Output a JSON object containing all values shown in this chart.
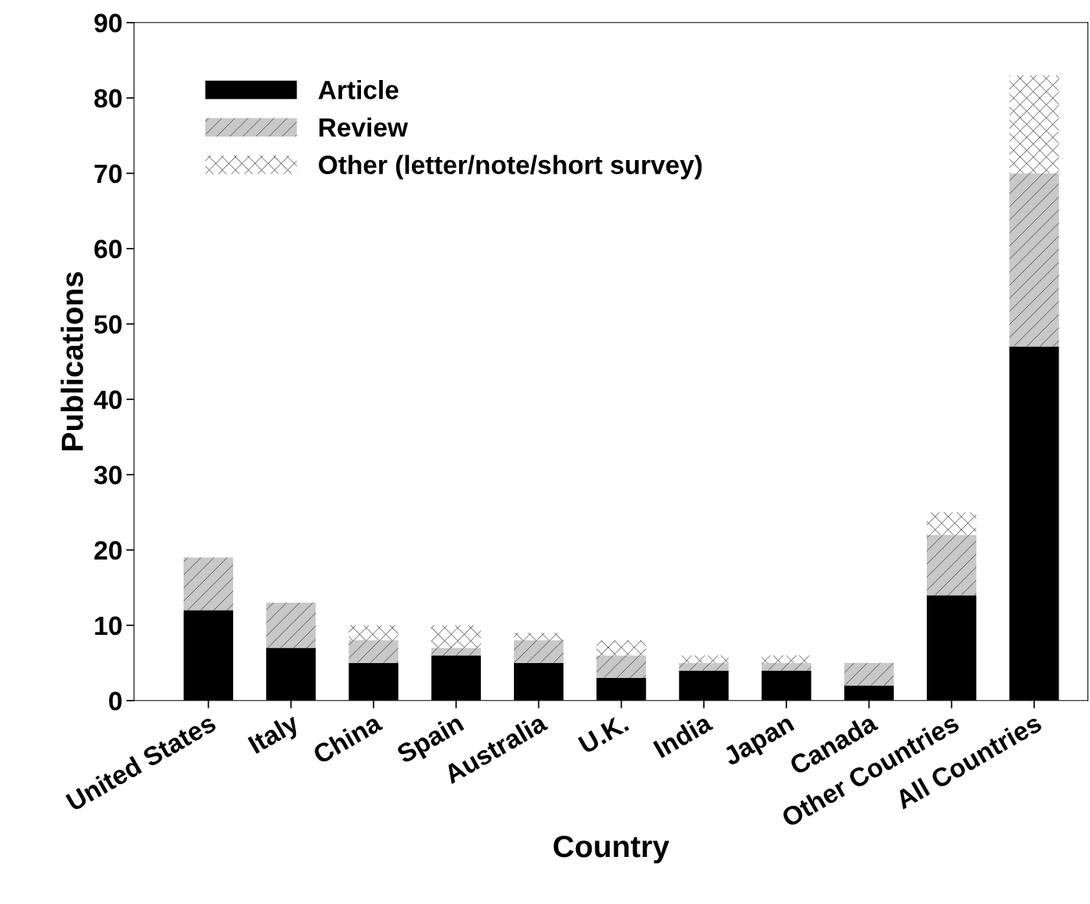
{
  "chart_data": {
    "type": "bar",
    "stacked": true,
    "xlabel": "Country",
    "ylabel": "Publications",
    "categories": [
      "United States",
      "Italy",
      "China",
      "Spain",
      "Australia",
      "U.K.",
      "India",
      "Japan",
      "Canada",
      "Other Countries",
      "All Countries"
    ],
    "series": [
      {
        "name": "Article",
        "color": "#000000",
        "values": [
          12,
          7,
          5,
          6,
          5,
          3,
          4,
          4,
          2,
          14,
          47
        ]
      },
      {
        "name": "Review",
        "color": "#c8c8c8",
        "values": [
          7,
          6,
          3,
          1,
          3,
          3,
          1,
          1,
          3,
          8,
          23
        ]
      },
      {
        "name": "Other (letter/note/short survey)",
        "color": "#ffffff",
        "values": [
          0,
          0,
          2,
          3,
          1,
          2,
          1,
          1,
          0,
          3,
          13
        ]
      }
    ],
    "ylim": [
      0,
      90
    ],
    "yticks": [
      0,
      10,
      20,
      30,
      40,
      50,
      60,
      70,
      80,
      90
    ],
    "grid": false,
    "legend": "top left"
  }
}
